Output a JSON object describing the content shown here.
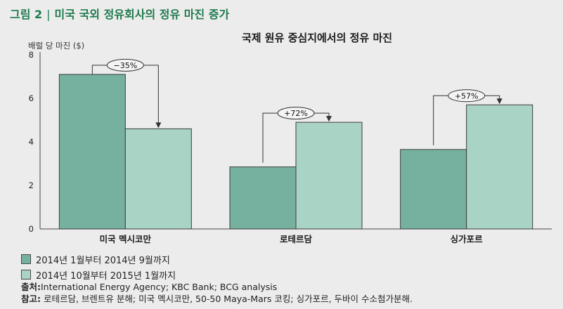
{
  "figure": {
    "label": "그림 2",
    "title": "미국 국외 정유회사의 정유 마진 증가"
  },
  "chart_data": {
    "type": "bar",
    "title": "국제 원유 중심지에서의 정유 마진",
    "ylabel": "배럴 당 마진 ($)",
    "xlabel": "",
    "ylim": [
      0,
      8
    ],
    "yticks": [
      0,
      2,
      4,
      6,
      8
    ],
    "grid": false,
    "legend_position": "bottom-left",
    "categories": [
      "미국 멕시코만",
      "로테르담",
      "싱가포르"
    ],
    "series": [
      {
        "name": "2014년 1월부터 2014년 9월까지",
        "color": "#76b1a0",
        "values": [
          7.1,
          2.85,
          3.65
        ]
      },
      {
        "name": "2014년 10월부터 2015년 1월까지",
        "color": "#a9d3c5",
        "values": [
          4.6,
          4.9,
          5.7
        ]
      }
    ],
    "annotations": [
      "−35%",
      "+72%",
      "+57%"
    ]
  },
  "notes": {
    "source_label": "출처:",
    "source_text": "International Energy Agency; KBC Bank; BCG analysis",
    "ref_label": "참고:",
    "ref_text": "로테르담, 브렌트유 분해; 미국 멕시코만, 50-50 Maya-Mars 코킹; 싱가포르, 두바이 수소첨가분해."
  }
}
